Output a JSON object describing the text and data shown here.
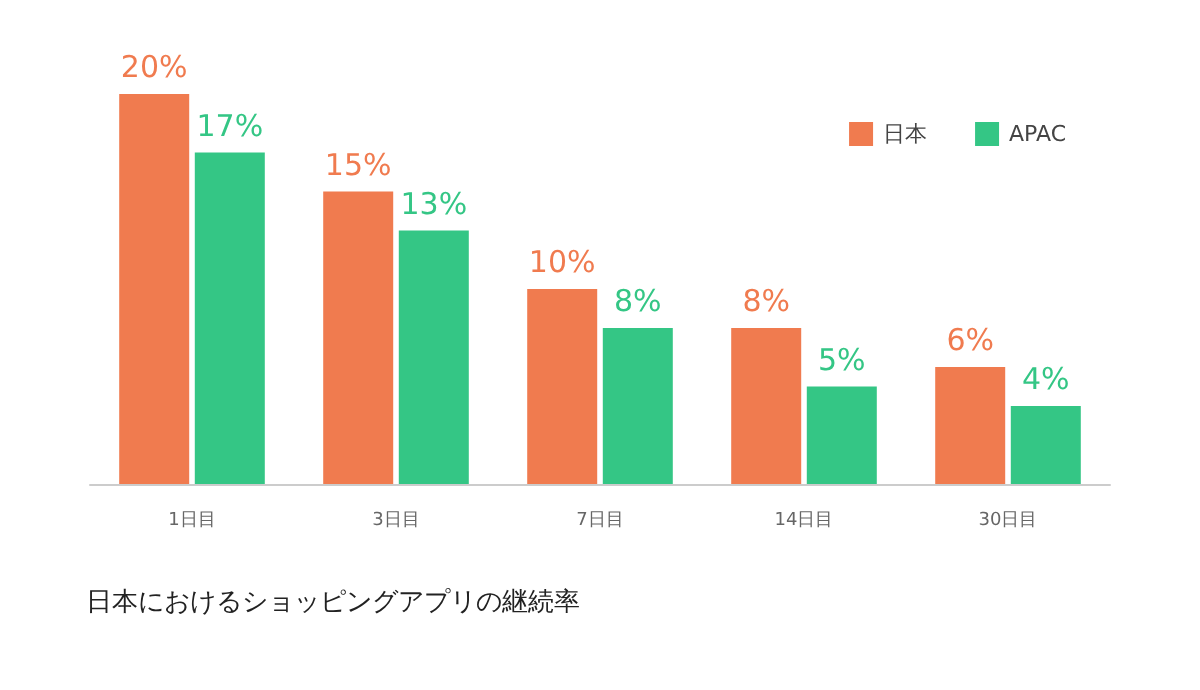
{
  "chart_data": {
    "type": "bar",
    "title": "日本におけるショッピングアプリの継続率",
    "categories": [
      "1日目",
      "3日目",
      "7日目",
      "14日目",
      "30日目"
    ],
    "series": [
      {
        "name": "日本",
        "color": "#f07b4f",
        "values": [
          20,
          15,
          10,
          8,
          6
        ],
        "value_labels": [
          "20%",
          "15%",
          "10%",
          "8%",
          "6%"
        ]
      },
      {
        "name": "APAC",
        "color": "#34c685",
        "values": [
          17,
          13,
          8,
          5,
          4
        ],
        "value_labels": [
          "17%",
          "13%",
          "8%",
          "5%",
          "4%"
        ]
      }
    ],
    "legend": "top right",
    "grid": false
  }
}
